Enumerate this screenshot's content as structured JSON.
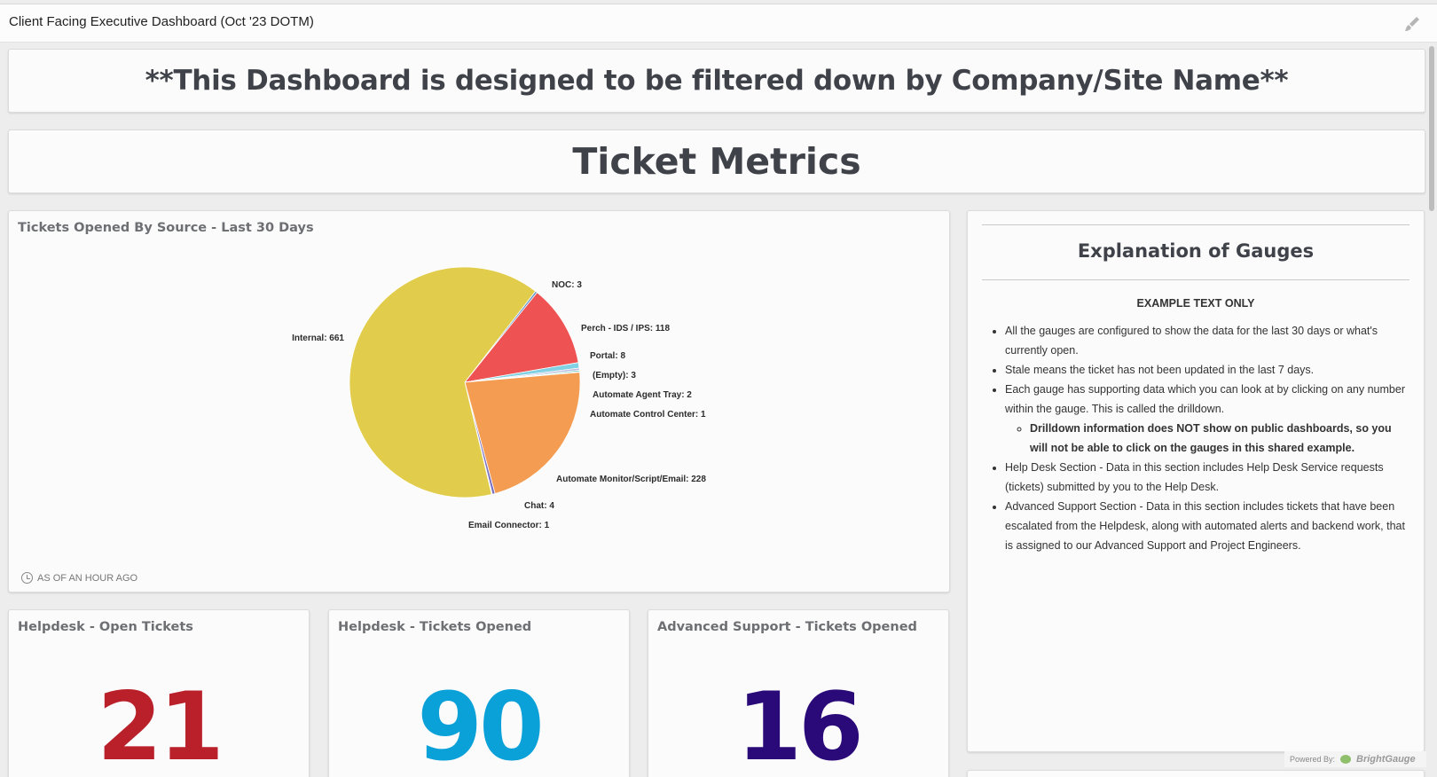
{
  "header": {
    "title": "Client Facing Executive Dashboard (Oct '23 DOTM)",
    "edit_icon": "paintbrush-icon"
  },
  "banner": {
    "text": "**This Dashboard is designed to be filtered down by Company/Site Name**"
  },
  "section": {
    "title": "Ticket Metrics"
  },
  "chart_panel": {
    "title": "Tickets Opened By Source - Last 30 Days",
    "as_of": "AS OF AN HOUR AGO"
  },
  "chart_data": {
    "type": "pie",
    "title": "Tickets Opened By Source - Last 30 Days",
    "slices": [
      {
        "label": "NOC: 3",
        "name": "NOC",
        "value": 3,
        "color": "#5b8fc9"
      },
      {
        "label": "Perch - IDS / IPS: 118",
        "name": "Perch - IDS / IPS",
        "value": 118,
        "color": "#ee5253"
      },
      {
        "label": "Portal: 8",
        "name": "Portal",
        "value": 8,
        "color": "#7fd1e3"
      },
      {
        "label": "(Empty): 3",
        "name": "(Empty)",
        "value": 3,
        "color": "#b7b7e0"
      },
      {
        "label": "Automate Agent Tray: 2",
        "name": "Automate Agent Tray",
        "value": 2,
        "color": "#4fb7a8"
      },
      {
        "label": "Automate Control Center: 1",
        "name": "Automate Control Center",
        "value": 1,
        "color": "#9fd37a"
      },
      {
        "label": "Automate Monitor/Script/Email: 228",
        "name": "Automate Monitor/Script/Email",
        "value": 228,
        "color": "#f39c52"
      },
      {
        "label": "Chat: 4",
        "name": "Chat",
        "value": 4,
        "color": "#7a6fc0"
      },
      {
        "label": "Email Connector: 1",
        "name": "Email Connector",
        "value": 1,
        "color": "#c64a8a"
      },
      {
        "label": "Internal: 661",
        "name": "Internal",
        "value": 661,
        "color": "#e1cc4b"
      }
    ]
  },
  "explanation": {
    "title": "Explanation of Gauges",
    "subtitle": "EXAMPLE TEXT ONLY",
    "bullets": [
      "All the gauges are configured to show the data for the last 30 days or what's currently open.",
      "Stale means the ticket has not been updated in the last 7 days.",
      "Each gauge has supporting data which you can look at by clicking on any number within the gauge. This is called the drilldown.",
      "Help Desk Section - Data in this section includes Help Desk Service requests (tickets) submitted by you to the Help Desk.",
      "Advanced Support Section - Data in this section includes tickets that have been escalated from the Helpdesk, along with automated alerts and backend work, that is assigned to our Advanced Support and Project Engineers."
    ],
    "sub_bullet": "Drilldown information does NOT show on public dashboards, so you will not be able to click on the gauges in this shared example."
  },
  "gauges": [
    {
      "title": "Helpdesk - Open Tickets",
      "value": "21",
      "color": "#b9202a"
    },
    {
      "title": "Helpdesk - Tickets Opened",
      "value": "90",
      "color": "#0aa0d8"
    },
    {
      "title": "Advanced Support - Tickets Opened",
      "value": "16",
      "color": "#2a0a78"
    }
  ],
  "footer": {
    "powered_by": "Powered By:",
    "brand": "BrightGauge"
  }
}
